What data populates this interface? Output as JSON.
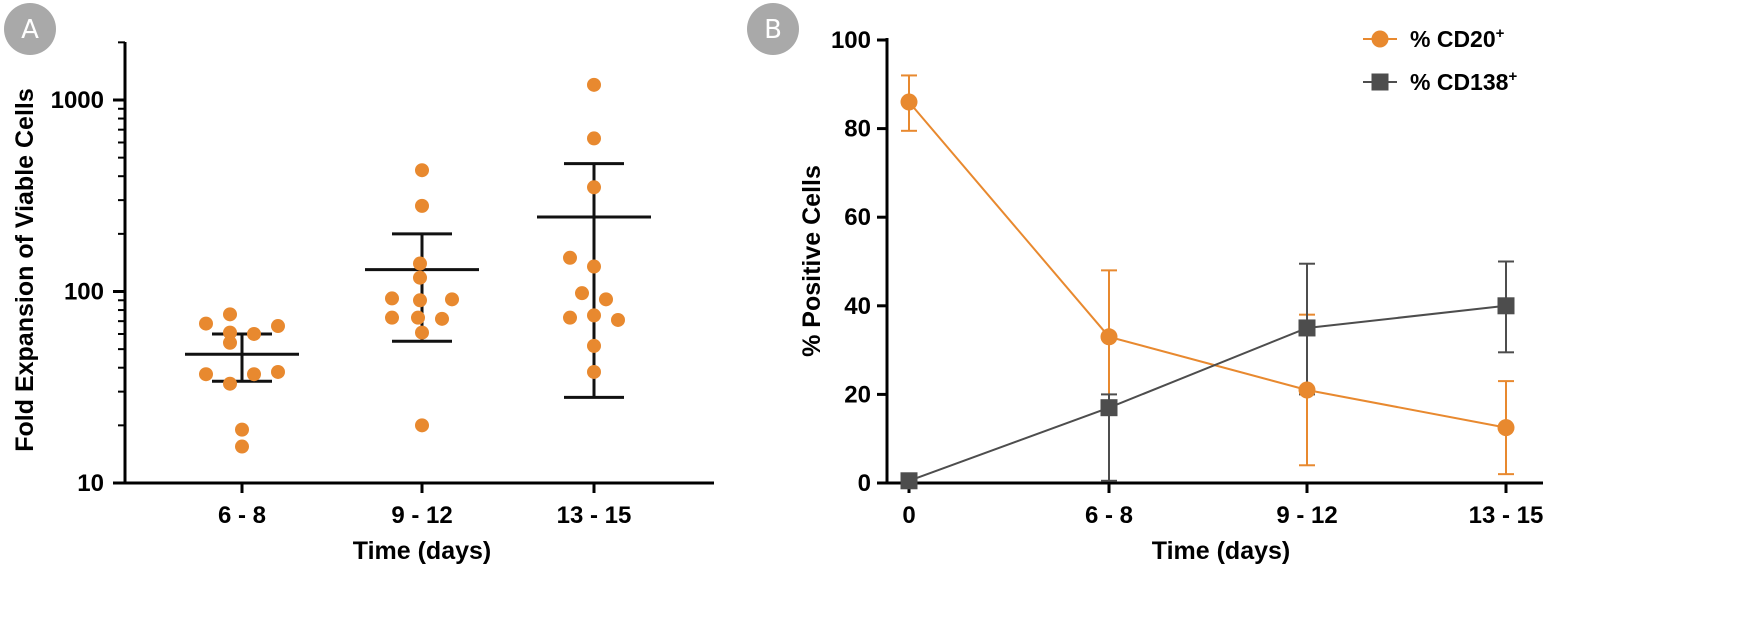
{
  "panels": {
    "a_label": "A",
    "b_label": "B"
  },
  "colors": {
    "orange": "#E8892F",
    "gray": "#4D4D4D",
    "badge": "#A9A9A9",
    "axis": "#000000"
  },
  "chart_data": [
    {
      "type": "scatter",
      "xlabel": "Time (days)",
      "ylabel": "Fold Expansion of Viable Cells",
      "yscale": "log",
      "ylim": [
        10,
        2000
      ],
      "yticks": [
        10,
        100,
        1000
      ],
      "ytick_labels": [
        "10",
        "100",
        "1000"
      ],
      "categories": [
        "6 - 8",
        "9 - 12",
        "13 - 15"
      ],
      "groups": [
        {
          "category": "6 - 8",
          "points": [
            68,
            76,
            61,
            60,
            66,
            54,
            37,
            33,
            37,
            38,
            19,
            15.5
          ],
          "mean": 47,
          "error_low": 34,
          "error_high": 60
        },
        {
          "category": "9 - 12",
          "points": [
            430,
            280,
            140,
            118,
            92,
            91,
            90,
            73,
            73,
            72,
            61,
            20
          ],
          "mean": 130,
          "error_low": 55,
          "error_high": 200
        },
        {
          "category": "13 - 15",
          "points": [
            1200,
            630,
            350,
            150,
            135,
            98,
            91,
            75,
            73,
            71,
            52,
            38
          ],
          "mean": 245,
          "error_low": 28,
          "error_high": 465
        }
      ]
    },
    {
      "type": "line",
      "xlabel": "Time (days)",
      "ylabel": "% Positive Cells",
      "ylim": [
        0,
        100
      ],
      "yticks": [
        0,
        20,
        40,
        60,
        80,
        100
      ],
      "categories": [
        "0",
        "6 - 8",
        "9 - 12",
        "13 - 15"
      ],
      "legend_position": "top-right",
      "series": [
        {
          "name": "% CD20",
          "superscript": "+",
          "marker": "circle",
          "values": [
            86,
            33,
            21,
            12.5
          ],
          "err_low": [
            79.5,
            17.5,
            4,
            2
          ],
          "err_high": [
            92,
            48,
            38,
            23
          ]
        },
        {
          "name": "% CD138",
          "superscript": "+",
          "marker": "square",
          "values": [
            0.5,
            17,
            35,
            40
          ],
          "err_low": [
            0.5,
            0.5,
            20,
            29.5
          ],
          "err_high": [
            0.5,
            20,
            49.5,
            50
          ]
        }
      ]
    }
  ]
}
